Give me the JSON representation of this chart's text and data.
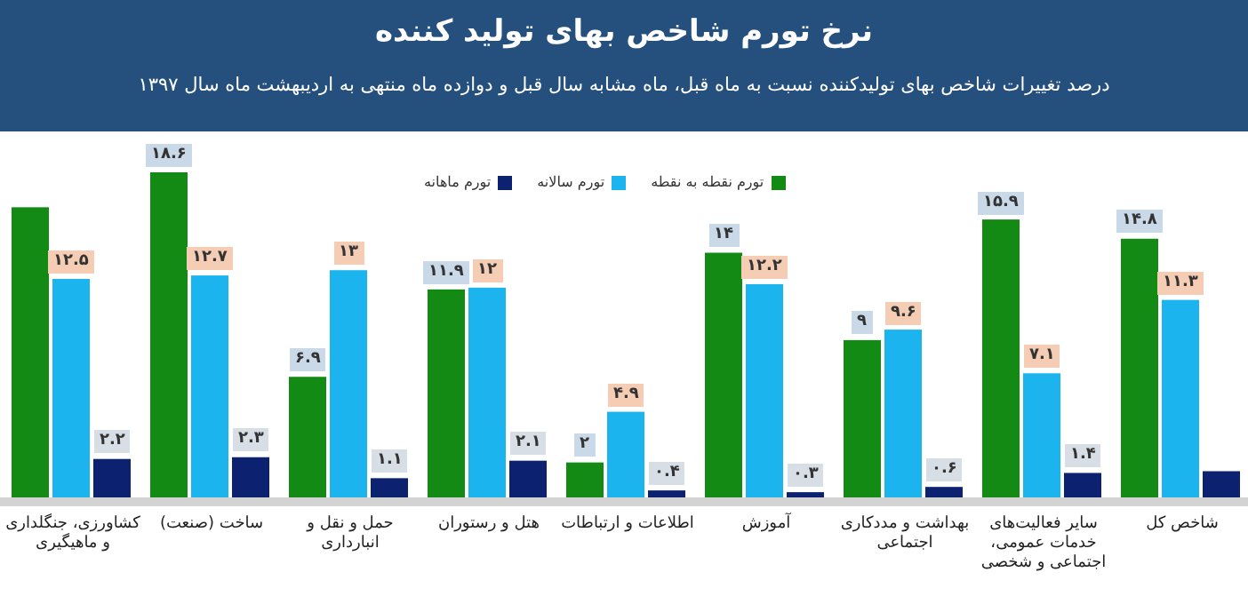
{
  "chart_data": {
    "type": "bar",
    "title": "نرخ تورم شاخص بهای تولید کننده",
    "subtitle": "درصد تغییرات شاخص بهای تولیدکننده نسبت به ماه قبل، ماه مشابه سال قبل و دوازده ماه منتهی به اردیبهشت ماه سال ۱۳۹۷",
    "categories": [
      "کشاورزی، جنگلداری و ماهیگیری",
      "ساخت (صنعت)",
      "حمل و نقل و انبارداری",
      "هتل و رستوران",
      "اطلاعات و ارتباطات",
      "آموزش",
      "بهداشت و مددکاری اجتماعی",
      "سایر فعالیت‌های خدمات عمومی، اجتماعی و شخصی",
      "شاخص کل"
    ],
    "series": [
      {
        "name": "تورم نقطه به نقطه",
        "color": "#138a13",
        "values": [
          16.6,
          18.6,
          6.9,
          11.9,
          2,
          14,
          9,
          15.9,
          14.8
        ],
        "value_labels": [
          null,
          "۱۸.۶",
          "۶.۹",
          "۱۱.۹",
          "۲",
          "۱۴",
          "۹",
          "۱۵.۹",
          "۱۴.۸"
        ]
      },
      {
        "name": "تورم سالانه",
        "color": "#1cb4ee",
        "values": [
          12.5,
          12.7,
          13,
          12,
          4.9,
          12.2,
          9.6,
          7.1,
          11.3
        ],
        "value_labels": [
          "۱۲.۵",
          "۱۲.۷",
          "۱۳",
          "۱۲",
          "۴.۹",
          "۱۲.۲",
          "۹.۶",
          "۷.۱",
          "۱۱.۳"
        ]
      },
      {
        "name": "تورم ماهانه",
        "color": "#0c2170",
        "values": [
          2.2,
          2.3,
          1.1,
          2.1,
          0.4,
          0.3,
          0.6,
          1.4,
          1.5
        ],
        "value_labels": [
          "۲.۲",
          "۲.۳",
          "۱.۱",
          "۲.۱",
          "۰.۴",
          "۰.۳",
          "۰.۶",
          "۱.۴",
          null
        ]
      }
    ],
    "legend": "top"
  }
}
